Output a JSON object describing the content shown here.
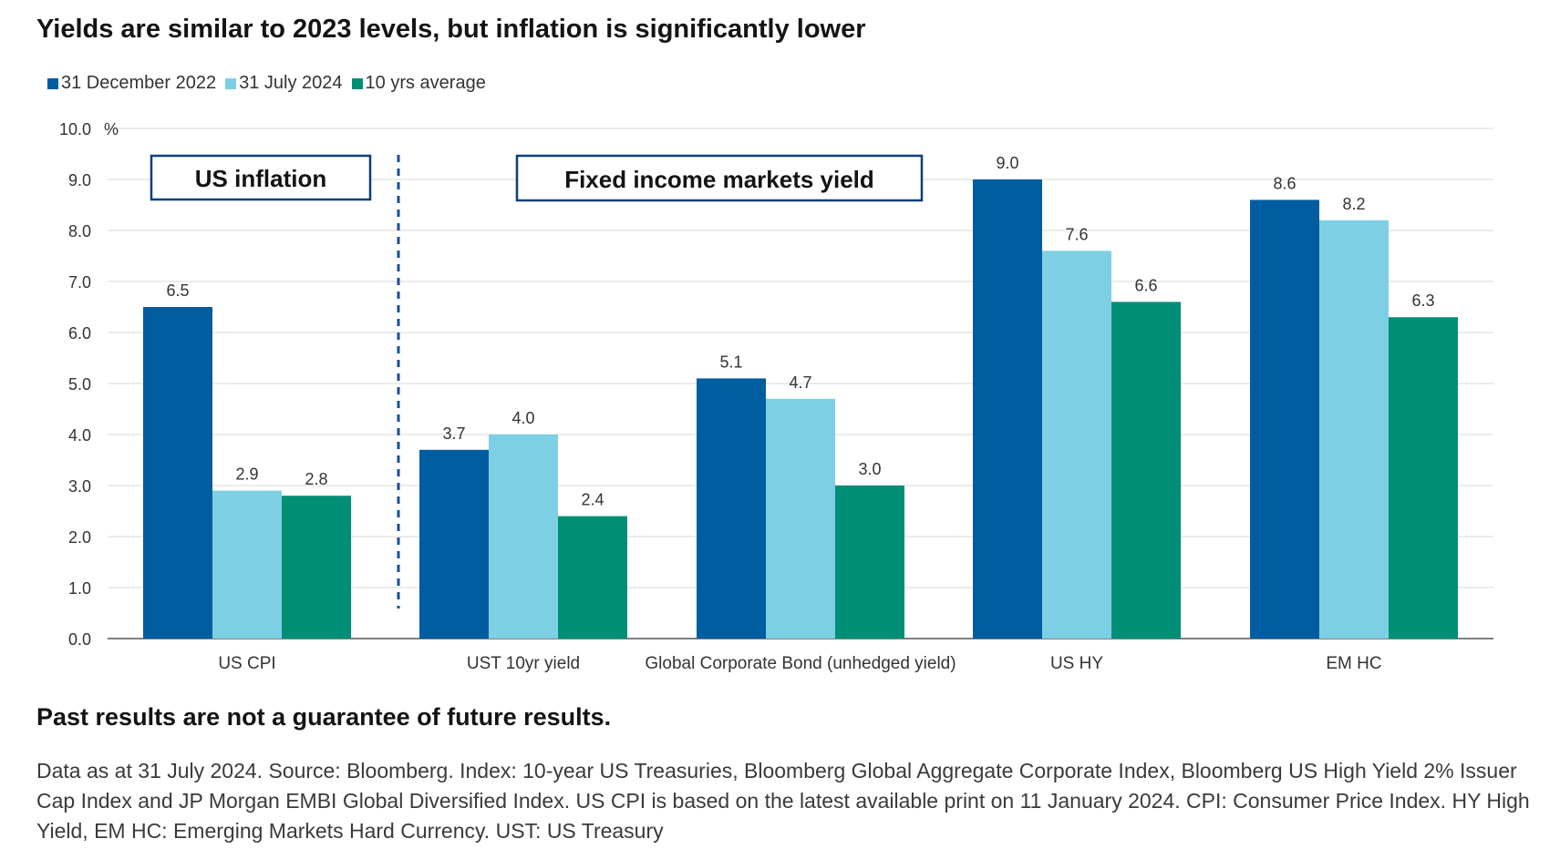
{
  "chart_data": {
    "type": "bar",
    "title": "Yields are similar to 2023 levels, but inflation is significantly lower",
    "ylabel": "%",
    "ylim": [
      0,
      10
    ],
    "yticks": [
      "0.0",
      "1.0",
      "2.0",
      "3.0",
      "4.0",
      "5.0",
      "6.0",
      "7.0",
      "8.0",
      "9.0",
      "10.0"
    ],
    "categories": [
      "US CPI",
      "UST 10yr yield",
      "Global Corporate Bond (unhedged yield)",
      "US HY",
      "EM HC"
    ],
    "series": [
      {
        "name": "31 December 2022",
        "color": "#005DA0",
        "values": [
          6.5,
          3.7,
          5.1,
          9.0,
          8.6
        ],
        "labels": [
          "6.5",
          "3.7",
          "5.1",
          "9.0",
          "8.6"
        ]
      },
      {
        "name": "31 July 2024",
        "color": "#7DD0E3",
        "values": [
          2.9,
          4.0,
          4.7,
          7.6,
          8.2
        ],
        "labels": [
          "2.9",
          "4.0",
          "4.7",
          "7.6",
          "8.2"
        ]
      },
      {
        "name": "10 yrs average",
        "color": "#008F76",
        "values": [
          2.8,
          2.4,
          3.0,
          6.6,
          6.3
        ],
        "labels": [
          "2.8",
          "2.4",
          "3.0",
          "6.6",
          "6.3"
        ]
      }
    ],
    "annotations": [
      "US inflation",
      "Fixed income markets yield"
    ],
    "legend_position": "top-left",
    "grid": true
  },
  "disclaimer": "Past results are not a guarantee of future results.",
  "footnote": "Data as at 31 July 2024. Source: Bloomberg. Index: 10-year US Treasuries, Bloomberg Global Aggregate Corporate Index, Bloomberg US High Yield 2% Issuer Cap Index and JP Morgan EMBI Global Diversified Index. US CPI is based on the latest available print on 11 January 2024. CPI: Consumer Price Index. HY High Yield, EM HC: Emerging Markets Hard Currency. UST: US Treasury",
  "colors": {
    "box_border": "#0B3F7A",
    "divider": "#1B4F8F",
    "grid": "#d9d9d9"
  }
}
